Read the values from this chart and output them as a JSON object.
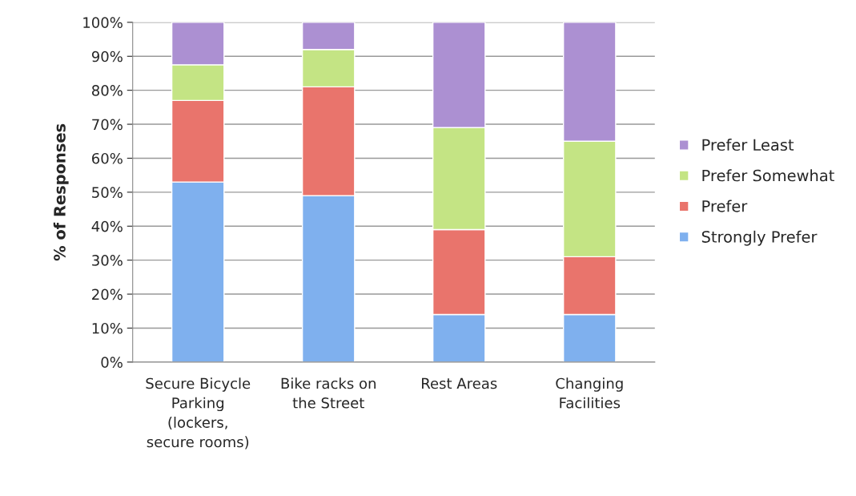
{
  "chart_data": {
    "type": "bar",
    "stacked": true,
    "ylabel": "% of Responses",
    "categories": [
      "Secure Bicycle\nParking\n(lockers,\nsecure rooms)",
      "Bike racks on\nthe Street",
      "Rest Areas",
      "Changing\nFacilities"
    ],
    "series": [
      {
        "name": "Strongly Prefer",
        "color": "#7fb0ee",
        "values": [
          53,
          49,
          14,
          14
        ]
      },
      {
        "name": "Prefer",
        "color": "#e9746c",
        "values": [
          24,
          32,
          25,
          17
        ]
      },
      {
        "name": "Prefer Somewhat",
        "color": "#c4e484",
        "values": [
          10.5,
          11,
          30,
          34
        ]
      },
      {
        "name": "Prefer Least",
        "color": "#ac90d2",
        "values": [
          12.5,
          8,
          31,
          35
        ]
      }
    ],
    "ylim": [
      0,
      100
    ],
    "yticks": [
      {
        "value": 0,
        "label": "0%"
      },
      {
        "value": 10,
        "label": "10%"
      },
      {
        "value": 20,
        "label": "20%"
      },
      {
        "value": 30,
        "label": "30%"
      },
      {
        "value": 40,
        "label": "40%"
      },
      {
        "value": 50,
        "label": "50%"
      },
      {
        "value": 60,
        "label": "60%"
      },
      {
        "value": 70,
        "label": "70%"
      },
      {
        "value": 80,
        "label": "80%"
      },
      {
        "value": 90,
        "label": "90%"
      },
      {
        "value": 100,
        "label": "100%"
      }
    ],
    "grid": "y",
    "legend": "right"
  }
}
